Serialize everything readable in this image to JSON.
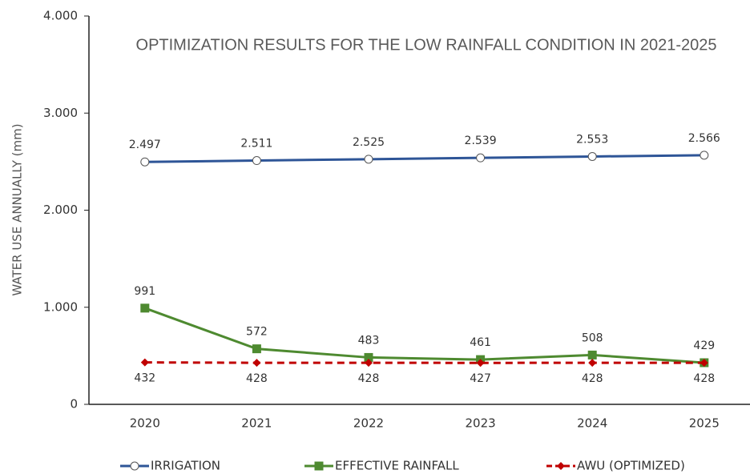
{
  "chart_data": {
    "type": "line",
    "title": "OPTIMIZATION RESULTS FOR THE LOW RAINFALL CONDITION IN 2021-2025",
    "y_label": "WATER USE ANNUALLY (mm)",
    "categories": [
      "2020",
      "2021",
      "2022",
      "2023",
      "2024",
      "2025"
    ],
    "series": [
      {
        "name": "IRRIGATION",
        "color": "#2e5597",
        "marker": "circle",
        "dash": false,
        "label_position": "above",
        "values": [
          2497,
          2511,
          2525,
          2539,
          2553,
          2566
        ],
        "value_labels": [
          "2.497",
          "2.511",
          "2.525",
          "2.539",
          "2.553",
          "2.566"
        ]
      },
      {
        "name": "EFFECTIVE RAINFALL",
        "color": "#4e8a30",
        "marker": "square",
        "dash": false,
        "label_position": "above",
        "values": [
          991,
          572,
          483,
          461,
          508,
          429
        ]
      },
      {
        "name": "AWU (OPTIMIZED)",
        "color": "#c00000",
        "marker": "diamond",
        "dash": true,
        "label_position": "below",
        "values": [
          432,
          428,
          428,
          427,
          428,
          428
        ]
      }
    ],
    "ylim": [
      0,
      4000
    ],
    "yticks": [
      0,
      {
        "value": 1000,
        "label": "1.000"
      },
      {
        "value": 2000,
        "label": "2.000"
      },
      {
        "value": 3000,
        "label": "3.000"
      },
      {
        "value": 4000,
        "label": "4.000"
      }
    ],
    "grid": false,
    "legend": "bottom"
  }
}
